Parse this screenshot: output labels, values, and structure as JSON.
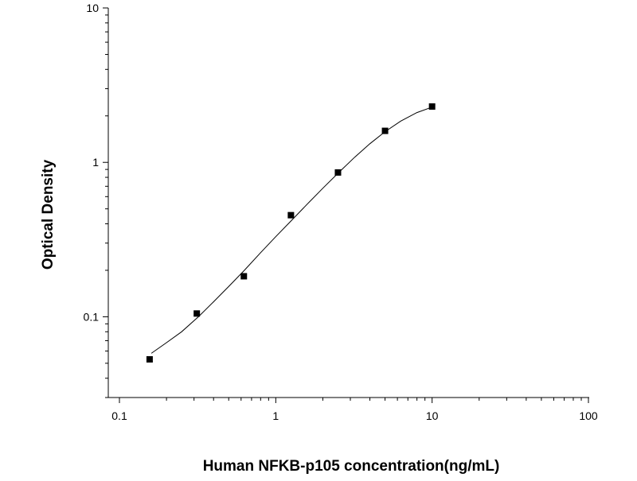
{
  "chart_data": {
    "type": "scatter",
    "title": "",
    "xlabel": "Human  NFKB-p105 concentration(ng/mL)",
    "ylabel": "Optical Density",
    "x_scale": "log",
    "y_scale": "log",
    "xlim": [
      0.1,
      100
    ],
    "ylim": [
      0.03,
      10
    ],
    "x_ticks": [
      0.1,
      1,
      10,
      100
    ],
    "x_tick_labels": [
      "0.1",
      "1",
      "10",
      "100"
    ],
    "y_ticks": [
      0.1,
      1,
      10
    ],
    "y_tick_labels": [
      "0.1",
      "1",
      "10"
    ],
    "grid": false,
    "legend": "none",
    "marker_color": "#000000",
    "line_color": "#000000",
    "points": [
      {
        "x": 0.156,
        "y": 0.053
      },
      {
        "x": 0.3125,
        "y": 0.105
      },
      {
        "x": 0.625,
        "y": 0.183
      },
      {
        "x": 1.25,
        "y": 0.455
      },
      {
        "x": 2.5,
        "y": 0.86
      },
      {
        "x": 5,
        "y": 1.6
      },
      {
        "x": 10,
        "y": 2.3
      }
    ],
    "fit_curve": [
      {
        "x": 0.16,
        "y": 0.058
      },
      {
        "x": 0.2,
        "y": 0.068
      },
      {
        "x": 0.25,
        "y": 0.08
      },
      {
        "x": 0.32,
        "y": 0.1
      },
      {
        "x": 0.4,
        "y": 0.125
      },
      {
        "x": 0.5,
        "y": 0.157
      },
      {
        "x": 0.63,
        "y": 0.2
      },
      {
        "x": 0.8,
        "y": 0.26
      },
      {
        "x": 1.0,
        "y": 0.33
      },
      {
        "x": 1.26,
        "y": 0.42
      },
      {
        "x": 1.6,
        "y": 0.54
      },
      {
        "x": 2.0,
        "y": 0.68
      },
      {
        "x": 2.5,
        "y": 0.85
      },
      {
        "x": 3.2,
        "y": 1.08
      },
      {
        "x": 4.0,
        "y": 1.32
      },
      {
        "x": 5.0,
        "y": 1.58
      },
      {
        "x": 6.3,
        "y": 1.85
      },
      {
        "x": 8.0,
        "y": 2.1
      },
      {
        "x": 10.0,
        "y": 2.28
      }
    ]
  }
}
